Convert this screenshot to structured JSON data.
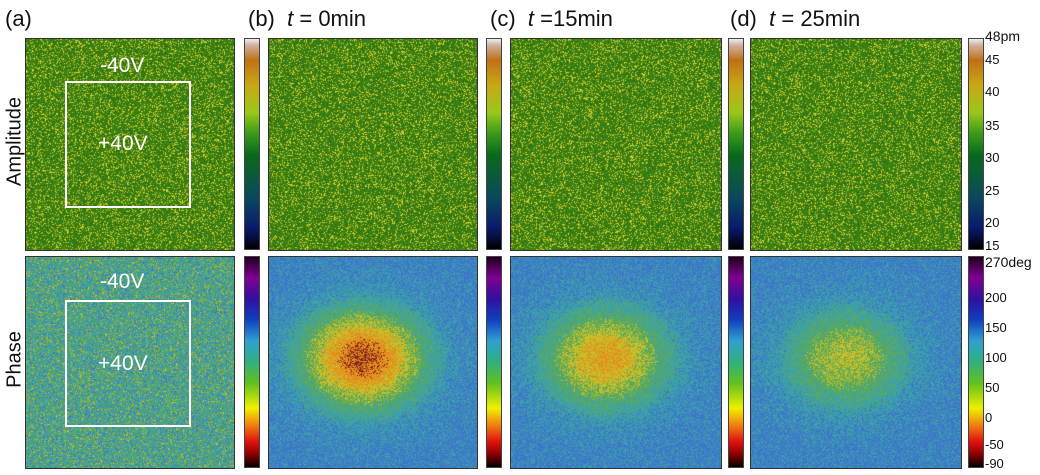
{
  "panels": [
    {
      "label": "(a)",
      "time": ""
    },
    {
      "label": "(b)",
      "t": "t",
      "time": " = 0min"
    },
    {
      "label": "(c)",
      "t": "t",
      "time": " =15min"
    },
    {
      "label": "(d)",
      "t": "t",
      "time": " = 25min"
    }
  ],
  "rows": {
    "amplitude": "Amplitude",
    "phase": "Phase"
  },
  "annotations": {
    "neg": "-40V",
    "pos": "+40V"
  },
  "amplitude_scale": {
    "ticks": [
      "48pm",
      "45",
      "40",
      "35",
      "30",
      "25",
      "20",
      "15"
    ]
  },
  "phase_scale": {
    "ticks": [
      "270deg",
      "200",
      "150",
      "100",
      "50",
      "0",
      "-50",
      "-90"
    ]
  }
}
